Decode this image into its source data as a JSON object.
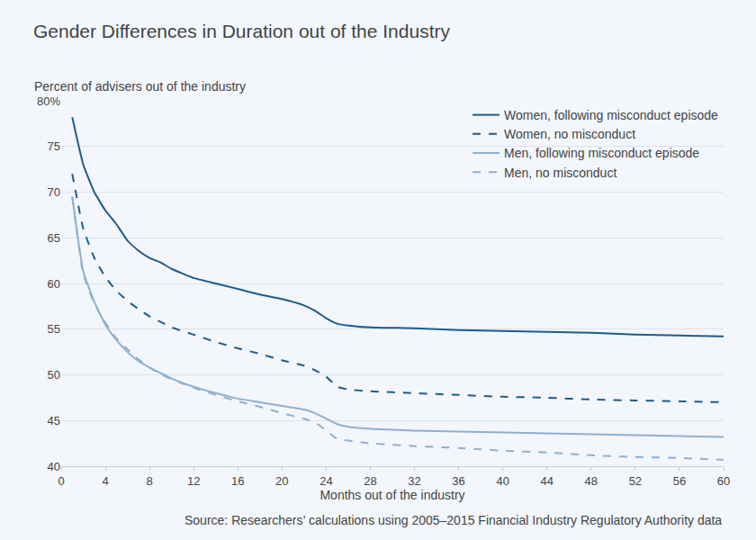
{
  "chart_data": {
    "type": "line",
    "title": "Gender Differences in Duration out of the Industry",
    "y_label": "Percent of advisers out of the industry",
    "x_label": "Months out of the industry",
    "source": "Source: Researchers’ calculations using 2005–2015 Financial Industry Regulatory Authority data",
    "x": [
      1,
      2,
      3,
      4,
      5,
      6,
      7,
      8,
      9,
      10,
      12,
      14,
      16,
      18,
      20,
      22,
      23,
      24,
      25,
      26,
      28,
      32,
      36,
      40,
      44,
      48,
      52,
      56,
      60
    ],
    "series": [
      {
        "name": "Women, following misconduct episode",
        "color": "#1f5c8b",
        "line_style": "solid",
        "values": [
          78.2,
          73,
          70,
          68,
          66.5,
          64.7,
          63.6,
          62.8,
          62.3,
          61.6,
          60.6,
          60,
          59.4,
          58.8,
          58.3,
          57.6,
          57,
          56.2,
          55.6,
          55.4,
          55.2,
          55.1,
          54.9,
          54.8,
          54.7,
          54.6,
          54.4,
          54.3,
          54.2
        ]
      },
      {
        "name": "Women, no misconduct",
        "color": "#1f5c8b",
        "line_style": "dash",
        "values": [
          72,
          66,
          62.8,
          60.7,
          59.2,
          58.1,
          57.2,
          56.4,
          55.8,
          55.2,
          54.4,
          53.6,
          52.9,
          52.3,
          51.6,
          51,
          50.5,
          49.8,
          48.7,
          48.4,
          48.2,
          48,
          47.8,
          47.6,
          47.5,
          47.3,
          47.2,
          47.1,
          47
        ]
      },
      {
        "name": "Men, following misconduct episode",
        "color": "#8fb0cf",
        "line_style": "solid",
        "values": [
          69.5,
          61.3,
          58,
          55.5,
          53.8,
          52.5,
          51.5,
          50.8,
          50.2,
          49.6,
          48.7,
          48,
          47.4,
          47,
          46.6,
          46.2,
          45.8,
          45.2,
          44.6,
          44.3,
          44.1,
          43.9,
          43.8,
          43.7,
          43.6,
          43.5,
          43.4,
          43.3,
          43.2
        ]
      },
      {
        "name": "Men, no misconduct",
        "color": "#8fb0cf",
        "line_style": "dash",
        "values": [
          69.5,
          61,
          57.8,
          55.7,
          54,
          52.8,
          51.7,
          50.8,
          50.1,
          49.5,
          48.6,
          47.8,
          47.1,
          46.5,
          45.8,
          45.2,
          44.8,
          43.9,
          43,
          42.8,
          42.5,
          42.2,
          42,
          41.7,
          41.5,
          41.2,
          41,
          40.9,
          40.7
        ]
      }
    ],
    "xlim": [
      0,
      60
    ],
    "xticks": [
      0,
      4,
      8,
      12,
      16,
      20,
      24,
      28,
      32,
      36,
      40,
      44,
      48,
      52,
      56,
      60
    ],
    "ylim": [
      40,
      80
    ],
    "yticks": [
      40,
      45,
      50,
      55,
      60,
      65,
      70,
      75,
      {
        "value": 80,
        "label": "80%"
      }
    ],
    "grid": true,
    "legend": "top right"
  }
}
